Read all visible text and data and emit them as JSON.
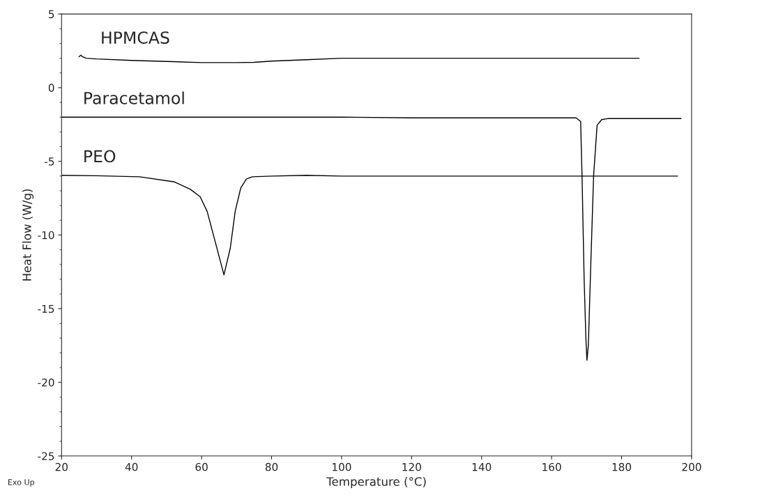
{
  "chart_data": {
    "type": "line",
    "xlabel": "Temperature (°C)",
    "ylabel": "Heat Flow (W/g)",
    "xlim": [
      20,
      200
    ],
    "xticks": [
      20,
      40,
      60,
      80,
      100,
      120,
      140,
      160,
      180,
      200
    ],
    "ylim": [
      -25,
      5
    ],
    "yticks": [
      -25,
      -20,
      -15,
      -10,
      -5,
      0,
      5
    ],
    "grid": false,
    "legend": false,
    "marker": "none",
    "line_style": "solid",
    "annotations": [
      "Exo Up"
    ],
    "series": [
      {
        "name": "HPMCAS",
        "color": "#000000",
        "x": [
          25,
          25.5,
          26,
          27,
          30,
          40,
          50,
          60,
          70,
          75,
          80,
          90,
          100,
          120,
          140,
          160,
          185
        ],
        "values": [
          2.1,
          2.2,
          2.1,
          2.0,
          1.95,
          1.85,
          1.78,
          1.7,
          1.7,
          1.72,
          1.8,
          1.9,
          2.0,
          2.0,
          2.0,
          2.0,
          2.0
        ]
      },
      {
        "name": "Paracetamol",
        "color": "#000000",
        "x": [
          20,
          60,
          100,
          120,
          140,
          160,
          167,
          168.3,
          168.7,
          169.3,
          169.8,
          170.1,
          170.5,
          171.2,
          172,
          173,
          174.3,
          176,
          185,
          197
        ],
        "values": [
          -2.0,
          -2.0,
          -2.0,
          -2.05,
          -2.05,
          -2.05,
          -2.05,
          -2.3,
          -6.0,
          -13.0,
          -17.0,
          -18.5,
          -17.5,
          -12.0,
          -6.0,
          -2.55,
          -2.17,
          -2.1,
          -2.1,
          -2.1
        ]
      },
      {
        "name": "PEO",
        "color": "#000000",
        "x": [
          20,
          30,
          42.3,
          52.3,
          56.8,
          59.6,
          61.6,
          63.6,
          66.4,
          68.2,
          69.6,
          71.2,
          72.8,
          74.5,
          80,
          90,
          100,
          140,
          196
        ],
        "values": [
          -5.95,
          -5.98,
          -6.05,
          -6.4,
          -6.9,
          -7.4,
          -8.4,
          -10.2,
          -12.7,
          -10.9,
          -8.4,
          -6.8,
          -6.2,
          -6.05,
          -6.0,
          -5.95,
          -6.0,
          -6.0,
          -6.0
        ]
      }
    ]
  }
}
